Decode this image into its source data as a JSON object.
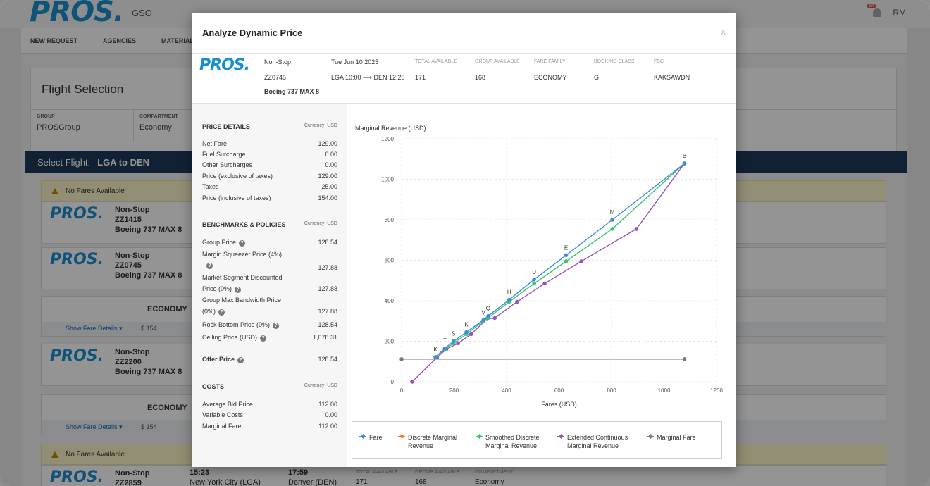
{
  "app": {
    "logo": "PROS.",
    "code": "GSO",
    "badge": "54",
    "user": "RM"
  },
  "nav": [
    "NEW REQUEST",
    "AGENCIES",
    "MATERIALIZA"
  ],
  "flight_selection": {
    "title": "Flight Selection",
    "group_label": "GROUP",
    "group_value": "PROSGroup",
    "compartment_label": "COMPARTMENT",
    "compartment_value": "Economy"
  },
  "select_flight": {
    "label": "Select Flight:",
    "route": "LGA to DEN"
  },
  "no_fares": "No Fares Available",
  "bg_flights": [
    {
      "type": "Non-Stop",
      "num": "ZZ1415",
      "plane": "Boeing 737 MAX 8"
    },
    {
      "type": "Non-Stop",
      "num": "ZZ0745",
      "plane": "Boeing 737 MAX 8"
    },
    {
      "type": "Non-Stop",
      "num": "ZZ2200",
      "plane": "Boeing 737 MAX 8"
    },
    {
      "type": "Non-Stop",
      "num": "ZZ2859",
      "plane": ""
    }
  ],
  "economy": "ECONOMY",
  "show_fare_details": "Show Fare Details",
  "fare_154": "$ 154",
  "bottom_row": {
    "dep": "15:23",
    "arr": "17:59",
    "dep_city": "New York City (LGA)",
    "arr_city": "Denver (DEN)",
    "ta": "TOTAL AVAILABLE",
    "ga": "GROUP AVAILABLE",
    "comp": "COMPARTMENT",
    "ta_v": "171",
    "ga_v": "168",
    "comp_v": "Economy"
  },
  "modal": {
    "title": "Analyze Dynamic Price",
    "close": "x",
    "logo": "PROS.",
    "flight": {
      "stops": "Non-Stop",
      "number": "ZZ0745",
      "aircraft": "Boeing 737 MAX 8",
      "date": "Tue Jun 10 2025",
      "route": "LGA 10:00 ⟶ DEN 12:20"
    },
    "cols": [
      {
        "label": "TOTAL AVAILABLE",
        "value": "171"
      },
      {
        "label": "GROUP AVAILABLE",
        "value": "168"
      },
      {
        "label": "FARE FAMILY",
        "value": "ECONOMY"
      },
      {
        "label": "BOOKING CLASS",
        "value": "G"
      },
      {
        "label": "FBC",
        "value": "KAKSAWDN"
      }
    ],
    "price_details": {
      "title": "PRICE DETAILS",
      "currency": "Currency: USD",
      "rows": [
        {
          "label": "Net Fare",
          "value": "129.00"
        },
        {
          "label": "Fuel Surcharge",
          "value": "0.00"
        },
        {
          "label": "Other Surcharges",
          "value": "0.00"
        },
        {
          "label": "Price (exclusive of taxes)",
          "value": "129.00"
        },
        {
          "label": "Taxes",
          "value": "25.00"
        },
        {
          "label": "Price (inclusive of taxes)",
          "value": "154.00"
        }
      ]
    },
    "benchmarks": {
      "title": "BENCHMARKS & POLICIES",
      "currency": "Currency: USD",
      "rows": [
        {
          "label": "Group Price",
          "value": "128.54"
        },
        {
          "label": "Margin Squeezer Price (4%)",
          "value": "127.88"
        },
        {
          "label": "Market Segment Discounted",
          "label2": "Price (0%)",
          "value": "127.88"
        },
        {
          "label": "Group Max Bandwidth Price",
          "label2": "(0%)",
          "value": "127.88"
        },
        {
          "label": "Rock Bottom Price (0%)",
          "value": "128.54"
        },
        {
          "label": "Ceiling Price (USD)",
          "value": "1,078.31"
        }
      ]
    },
    "offer": {
      "label": "Offer Price",
      "value": "128.54"
    },
    "costs": {
      "title": "COSTS",
      "currency": "Currency: USD",
      "rows": [
        {
          "label": "Average Bid Price",
          "value": "112.00"
        },
        {
          "label": "Variable Costs",
          "value": "0.00"
        },
        {
          "label": "Marginal Fare",
          "value": "112.00"
        }
      ]
    }
  },
  "chart_data": {
    "type": "line",
    "ylabel": "Marginal Revenue (USD)",
    "xlabel": "Fares (USD)",
    "xlim": [
      0,
      1200
    ],
    "ylim": [
      0,
      1200
    ],
    "xticks": [
      0,
      200,
      400,
      600,
      800,
      1000,
      1200
    ],
    "yticks": [
      0,
      200,
      400,
      600,
      800,
      1000,
      1200
    ],
    "grid": true,
    "series": [
      {
        "name": "Fare",
        "color": "#3b8ed8",
        "points": [
          [
            129,
            122
          ],
          [
            165,
            165
          ],
          [
            198,
            200
          ],
          [
            247,
            245
          ],
          [
            312,
            305
          ],
          [
            330,
            325
          ],
          [
            410,
            405
          ],
          [
            505,
            505
          ],
          [
            627,
            625
          ],
          [
            803,
            800
          ],
          [
            1078,
            1078
          ]
        ]
      },
      {
        "name": "Discrete Marginal Revenue",
        "color": "#f07f2a",
        "points": []
      },
      {
        "name": "Smoothed Discrete Marginal Revenue",
        "color": "#3cc46a",
        "points": [
          [
            129,
            122
          ],
          [
            165,
            160
          ],
          [
            198,
            190
          ],
          [
            247,
            235
          ],
          [
            312,
            300
          ],
          [
            330,
            315
          ],
          [
            410,
            395
          ],
          [
            505,
            485
          ],
          [
            627,
            595
          ],
          [
            803,
            755
          ],
          [
            1078,
            1078
          ]
        ]
      },
      {
        "name": "Extended Continuous Marginal Revenue",
        "color": "#9a52b8",
        "points": [
          [
            40,
            0
          ],
          [
            135,
            120
          ],
          [
            170,
            160
          ],
          [
            215,
            190
          ],
          [
            265,
            235
          ],
          [
            325,
            310
          ],
          [
            355,
            315
          ],
          [
            440,
            395
          ],
          [
            545,
            485
          ],
          [
            685,
            595
          ],
          [
            895,
            755
          ],
          [
            1078,
            1078
          ]
        ]
      },
      {
        "name": "Marginal Fare",
        "color": "#7a7a7a",
        "points": [
          [
            0,
            112
          ],
          [
            1078,
            112
          ]
        ]
      }
    ],
    "annotations": [
      {
        "text": "K",
        "x": 129,
        "y": 122
      },
      {
        "text": "T",
        "x": 165,
        "y": 165
      },
      {
        "text": "S",
        "x": 198,
        "y": 200
      },
      {
        "text": "K",
        "x": 247,
        "y": 245
      },
      {
        "text": "V",
        "x": 312,
        "y": 305
      },
      {
        "text": "Q",
        "x": 330,
        "y": 325
      },
      {
        "text": "H",
        "x": 410,
        "y": 405
      },
      {
        "text": "U",
        "x": 505,
        "y": 505
      },
      {
        "text": "E",
        "x": 627,
        "y": 625
      },
      {
        "text": "M",
        "x": 803,
        "y": 800
      },
      {
        "text": "B",
        "x": 1078,
        "y": 1078
      }
    ]
  },
  "legend": [
    {
      "label": "Fare",
      "color": "#3b8ed8"
    },
    {
      "label": "Discrete Marginal Revenue",
      "color": "#f07f2a"
    },
    {
      "label": "Smoothed Discrete Marginal Revenue",
      "color": "#3cc46a"
    },
    {
      "label": "Extended Continuous Marginal Revenue",
      "color": "#9a52b8"
    },
    {
      "label": "Marginal Fare",
      "color": "#7a7a7a"
    }
  ]
}
